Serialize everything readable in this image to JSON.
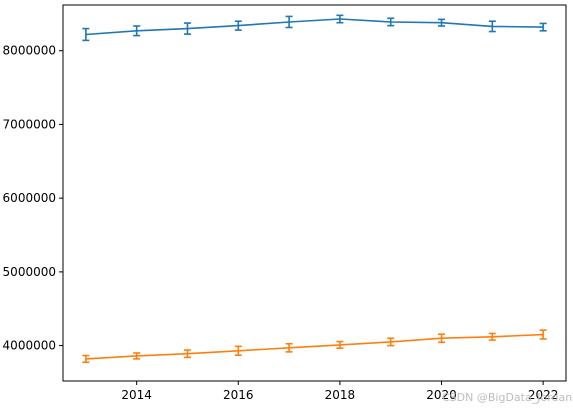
{
  "chart_data": {
    "type": "line",
    "title": "",
    "xlabel": "",
    "ylabel": "",
    "x": [
      2013,
      2014,
      2015,
      2016,
      2017,
      2018,
      2019,
      2020,
      2021,
      2022
    ],
    "xlim": [
      2012.55,
      2022.45
    ],
    "ylim": [
      3520000,
      8620000
    ],
    "x_ticks": [
      2014,
      2016,
      2018,
      2020,
      2022
    ],
    "y_ticks": [
      4000000,
      5000000,
      6000000,
      7000000,
      8000000
    ],
    "grid": false,
    "error_bars": true,
    "series": [
      {
        "color": "#1f77b4",
        "values": [
          8220000,
          8270000,
          8300000,
          8340000,
          8390000,
          8430000,
          8390000,
          8380000,
          8330000,
          8320000
        ],
        "errors": [
          80000,
          65000,
          75000,
          60000,
          75000,
          50000,
          50000,
          45000,
          70000,
          50000
        ]
      },
      {
        "color": "#ff7f0e",
        "values": [
          3820000,
          3860000,
          3890000,
          3930000,
          3970000,
          4010000,
          4050000,
          4100000,
          4120000,
          4150000
        ],
        "errors": [
          45000,
          40000,
          50000,
          60000,
          55000,
          45000,
          50000,
          55000,
          45000,
          60000
        ]
      }
    ]
  },
  "watermark": "CSDN @BigData_Jordan"
}
